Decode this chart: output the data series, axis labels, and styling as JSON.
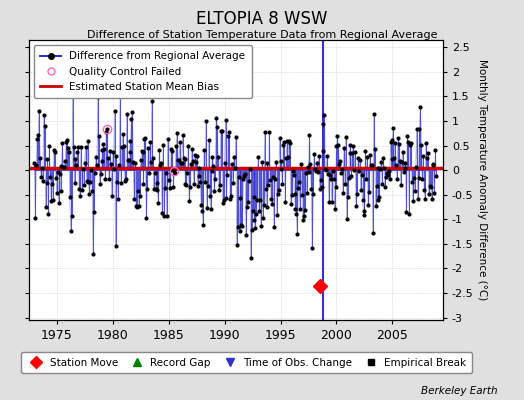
{
  "title": "ELTOPIA 8 WSW",
  "subtitle": "Difference of Station Temperature Data from Regional Average",
  "ylabel_right": "Monthly Temperature Anomaly Difference (°C)",
  "xlim": [
    1972.5,
    2009.5
  ],
  "ylim": [
    -3.05,
    2.65
  ],
  "yticks": [
    -3,
    -2.5,
    -2,
    -1.5,
    -1,
    -0.5,
    0,
    0.5,
    1,
    1.5,
    2,
    2.5
  ],
  "xticks": [
    1975,
    1980,
    1985,
    1990,
    1995,
    2000,
    2005
  ],
  "mean_bias": 0.05,
  "station_move_year": 1998.5,
  "station_move_value": -2.35,
  "time_of_obs_year": 1998.75,
  "background_color": "#e0e0e0",
  "plot_bg_color": "#ffffff",
  "line_color": "#3333cc",
  "bias_color": "#cc0000",
  "qc_color": "#ff69b4",
  "qc_failed_years": [
    1979.5,
    1985.5
  ],
  "seed": 17
}
